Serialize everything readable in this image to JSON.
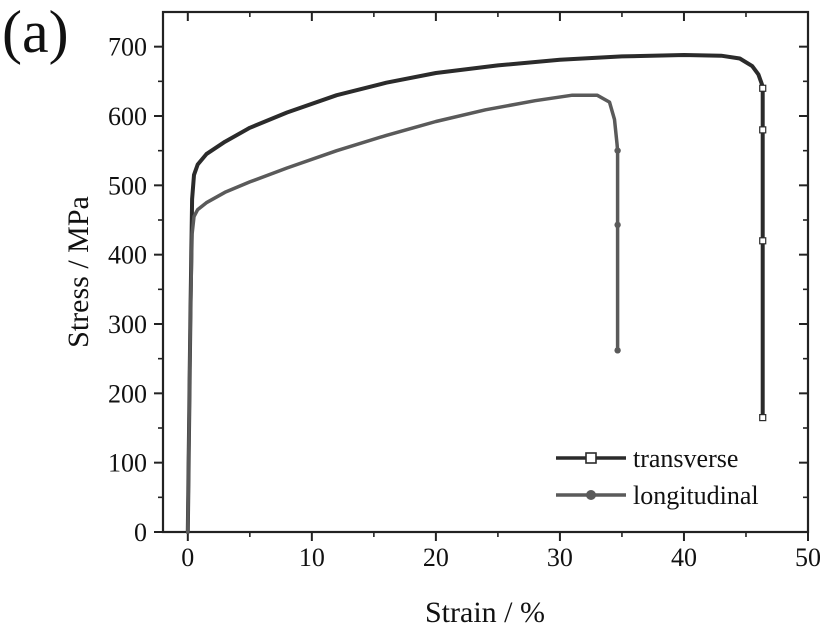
{
  "panel_label": "(a)",
  "chart_data": {
    "type": "line",
    "xlabel": "Strain / %",
    "ylabel": "Stress / MPa",
    "xlim": [
      -2,
      50
    ],
    "ylim": [
      0,
      750
    ],
    "xticks": [
      0,
      10,
      20,
      30,
      40,
      50
    ],
    "yticks": [
      0,
      100,
      200,
      300,
      400,
      500,
      600,
      700
    ],
    "grid": false,
    "legend_position": "bottom-right",
    "series": [
      {
        "name": "transverse",
        "color": "#2b2b2b",
        "marker": "open-square",
        "x": [
          0,
          0.2,
          0.35,
          0.5,
          0.8,
          1.5,
          3,
          5,
          8,
          12,
          16,
          20,
          25,
          30,
          35,
          40,
          43,
          44.5,
          45.5,
          46,
          46.3,
          46.35,
          46.35,
          46.35,
          46.35
        ],
        "y": [
          0,
          300,
          480,
          515,
          530,
          545,
          563,
          583,
          605,
          630,
          648,
          662,
          673,
          681,
          686,
          688,
          687,
          683,
          672,
          660,
          645,
          640,
          580,
          420,
          165
        ],
        "markers_x": [
          46.35,
          46.35,
          46.35,
          46.35
        ],
        "markers_y": [
          640,
          580,
          420,
          165
        ]
      },
      {
        "name": "longitudinal",
        "color": "#5a5a5a",
        "marker": "filled-circle",
        "x": [
          0,
          0.2,
          0.35,
          0.5,
          0.8,
          1.5,
          3,
          5,
          8,
          12,
          16,
          20,
          24,
          28,
          31,
          33,
          34,
          34.4,
          34.6,
          34.65,
          34.65,
          34.65
        ],
        "y": [
          0,
          300,
          430,
          455,
          465,
          475,
          490,
          505,
          525,
          550,
          572,
          592,
          609,
          622,
          630,
          630,
          620,
          595,
          560,
          550,
          443,
          262
        ],
        "markers_x": [
          34.65,
          34.65,
          34.65
        ],
        "markers_y": [
          550,
          443,
          262
        ]
      }
    ]
  }
}
